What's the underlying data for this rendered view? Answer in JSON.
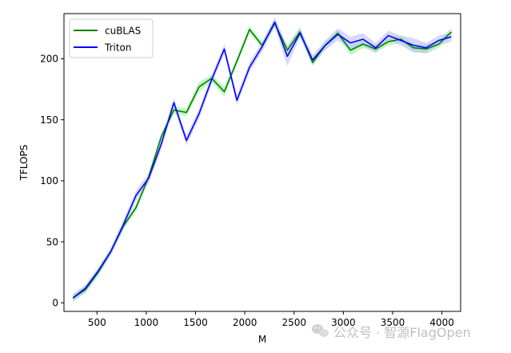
{
  "chart_data": {
    "type": "line",
    "title": "",
    "xlabel": "M",
    "ylabel": "TFLOPS",
    "xlim": [
      165,
      4190
    ],
    "ylim": [
      -7,
      237
    ],
    "xticks": [
      500,
      1000,
      1500,
      2000,
      2500,
      3000,
      3500,
      4000
    ],
    "yticks": [
      0,
      50,
      100,
      150,
      200
    ],
    "grid": false,
    "legend_position": "top-left",
    "x": [
      256,
      384,
      512,
      640,
      768,
      896,
      1024,
      1152,
      1280,
      1408,
      1536,
      1664,
      1792,
      1920,
      2048,
      2176,
      2304,
      2432,
      2560,
      2688,
      2816,
      2944,
      3072,
      3200,
      3328,
      3456,
      3584,
      3712,
      3840,
      3968,
      4096
    ],
    "series": [
      {
        "name": "cuBLAS",
        "color": "#008000",
        "band_color": "#90ee90",
        "values": [
          4,
          11,
          25,
          42,
          63,
          78,
          103,
          136,
          158,
          156,
          177,
          184,
          173,
          198,
          224,
          211,
          229,
          207,
          222,
          197,
          211,
          221,
          207,
          212,
          208,
          214,
          216,
          209,
          208,
          212,
          222
        ],
        "band": [
          3,
          3,
          3,
          3,
          3,
          3,
          3,
          3,
          3,
          3,
          4,
          3,
          4,
          3,
          3,
          3,
          3,
          4,
          4,
          3,
          3,
          3,
          4,
          3,
          3,
          3,
          3,
          3,
          4,
          3,
          3
        ]
      },
      {
        "name": "Triton",
        "color": "#0000ff",
        "band_color": "#b8b8ff",
        "values": [
          4,
          12,
          26,
          42,
          64,
          88,
          102,
          130,
          164,
          133,
          155,
          183,
          208,
          166,
          193,
          210,
          230,
          202,
          221,
          199,
          211,
          220,
          213,
          216,
          209,
          219,
          215,
          211,
          209,
          215,
          218
        ],
        "band": [
          3,
          3,
          3,
          3,
          4,
          4,
          4,
          4,
          4,
          4,
          4,
          4,
          4,
          4,
          4,
          4,
          4,
          8,
          4,
          4,
          4,
          5,
          5,
          5,
          4,
          4,
          4,
          6,
          4,
          4,
          4
        ]
      }
    ]
  },
  "watermark": {
    "text": "公众号 · 智源FlagOpen",
    "icon": "wechat-icon"
  }
}
